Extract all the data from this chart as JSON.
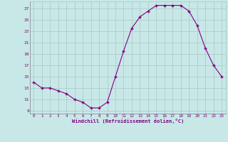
{
  "x": [
    0,
    1,
    2,
    3,
    4,
    5,
    6,
    7,
    8,
    9,
    10,
    11,
    12,
    13,
    14,
    15,
    16,
    17,
    18,
    19,
    20,
    21,
    22,
    23
  ],
  "y": [
    14,
    13,
    13,
    12.5,
    12,
    11,
    10.5,
    9.5,
    9.5,
    10.5,
    15,
    19.5,
    23.5,
    25.5,
    26.5,
    27.5,
    27.5,
    27.5,
    27.5,
    26.5,
    24,
    20,
    17,
    15
  ],
  "xlabel": "Windchill (Refroidissement éolien,°C)",
  "xlim": [
    -0.5,
    23.5
  ],
  "ylim": [
    8.5,
    28.2
  ],
  "yticks": [
    9,
    11,
    13,
    15,
    17,
    19,
    21,
    23,
    25,
    27
  ],
  "xticks": [
    0,
    1,
    2,
    3,
    4,
    5,
    6,
    7,
    8,
    9,
    10,
    11,
    12,
    13,
    14,
    15,
    16,
    17,
    18,
    19,
    20,
    21,
    22,
    23
  ],
  "line_color": "#800080",
  "bg_color": "#c8e8e8",
  "grid_color": "#a8c8c8",
  "tick_color": "#800080",
  "label_color": "#800080"
}
